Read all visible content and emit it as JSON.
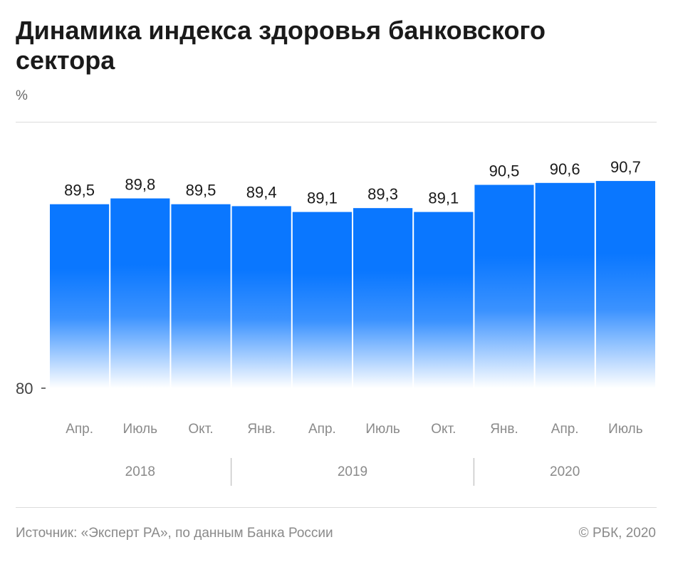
{
  "title": "Динамика индекса здоровья банковского сектора",
  "unit_label": "%",
  "source": "Источник: «Эксперт РА», по данным Банка России",
  "copyright": "© РБК, 2020",
  "colors": {
    "bar": "#0a77ff",
    "value_text": "#1a1a1a",
    "axis_text": "#8a8a8a",
    "divider": "#c8c8c8"
  },
  "chart_data": {
    "type": "bar",
    "title": "",
    "xlabel": "",
    "ylabel": "%",
    "ylim": [
      80,
      92
    ],
    "y_ticks": [
      80
    ],
    "categories": [
      "Апр.",
      "Июль",
      "Окт.",
      "Янв.",
      "Апр.",
      "Июль",
      "Окт.",
      "Янв.",
      "Апр.",
      "Июль"
    ],
    "data_labels": [
      "89,5",
      "89,8",
      "89,5",
      "89,4",
      "89,1",
      "89,3",
      "89,1",
      "90,5",
      "90,6",
      "90,7"
    ],
    "series": [
      {
        "values": [
          89.5,
          89.8,
          89.5,
          89.4,
          89.1,
          89.3,
          89.1,
          90.5,
          90.6,
          90.7
        ]
      }
    ],
    "year_groups": [
      {
        "label": "2018",
        "start": 0,
        "end": 2
      },
      {
        "label": "2019",
        "start": 3,
        "end": 6
      },
      {
        "label": "2020",
        "start": 7,
        "end": 9
      }
    ],
    "grid": false,
    "legend": "none"
  }
}
